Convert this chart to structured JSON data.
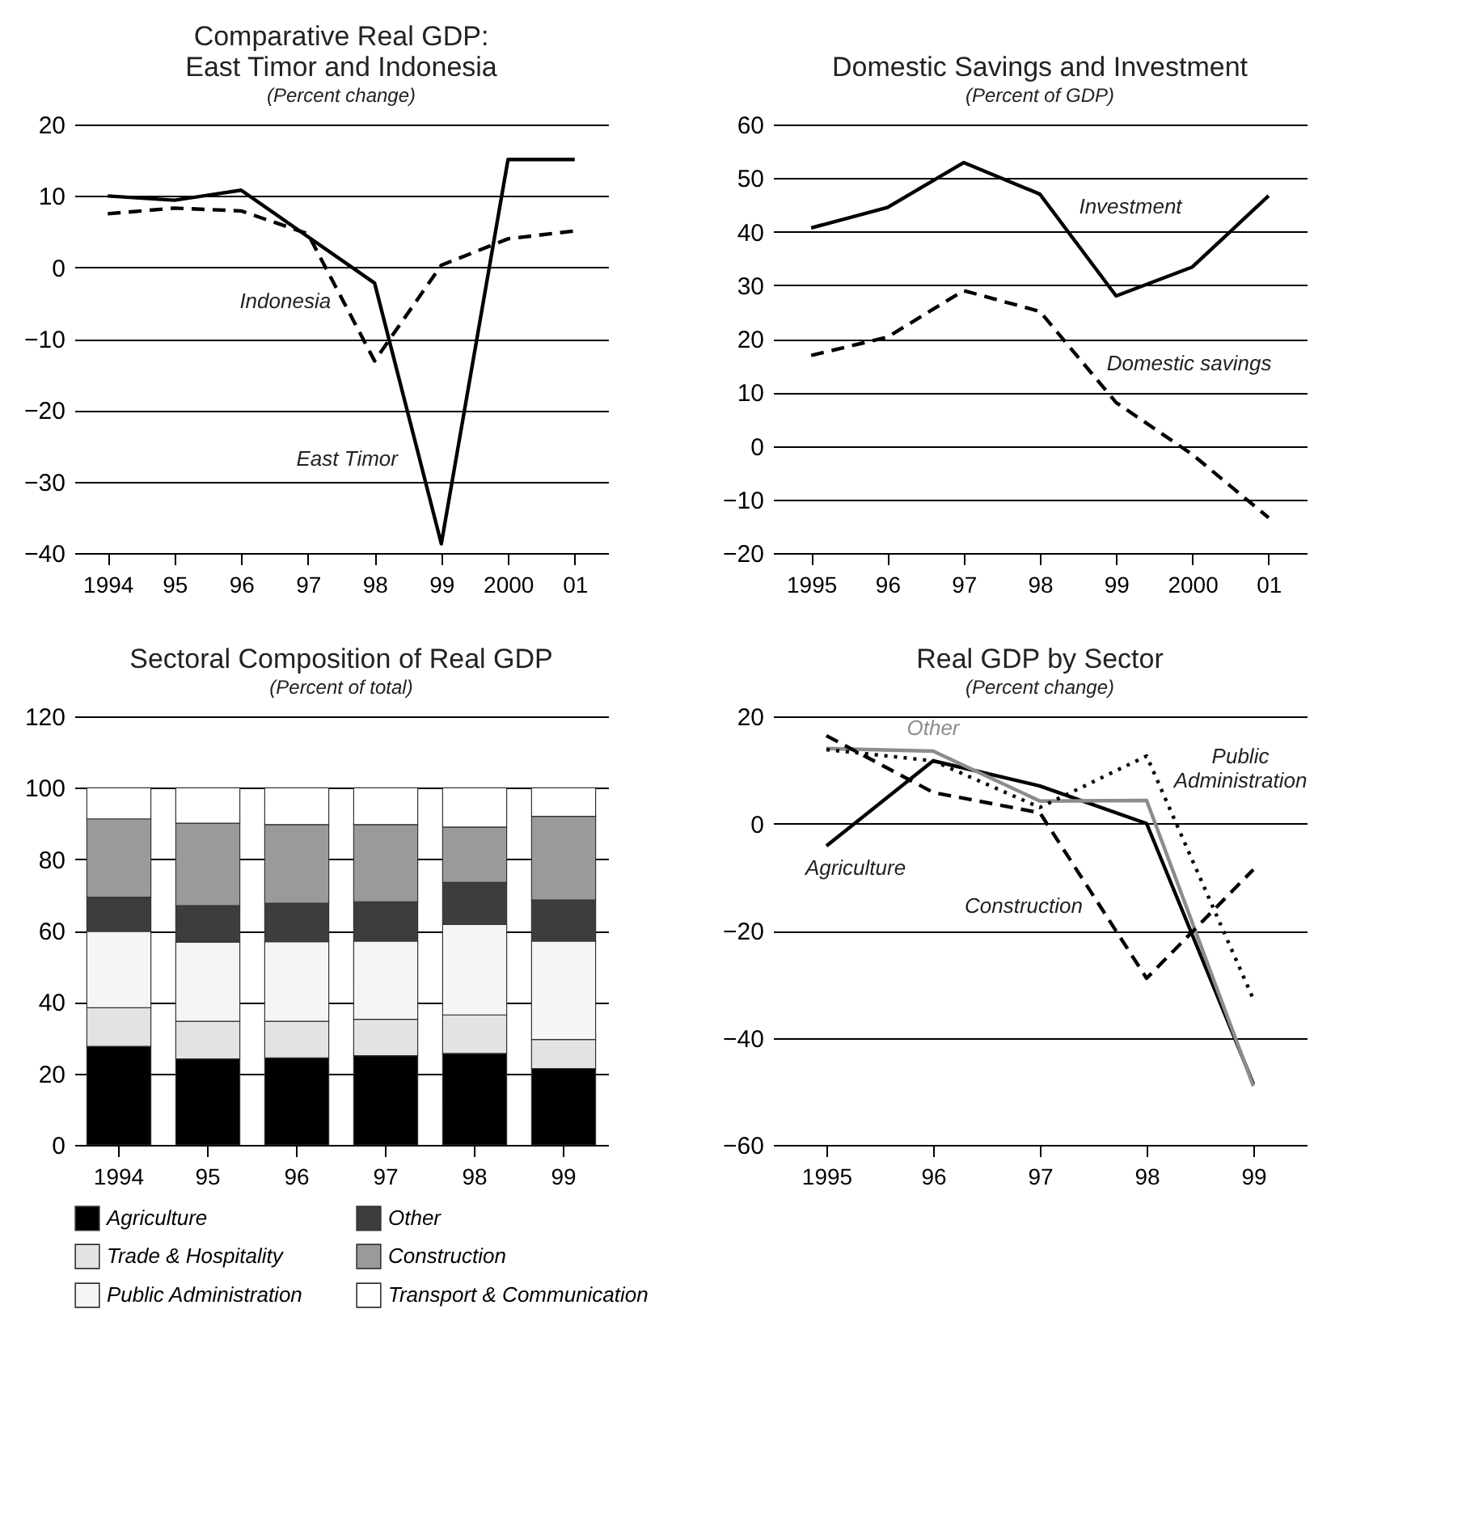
{
  "chart_data": [
    {
      "type": "line",
      "title": "Comparative Real GDP:\nEast Timor and Indonesia",
      "subtitle": "(Percent change)",
      "categories": [
        "1994",
        "95",
        "96",
        "97",
        "98",
        "99",
        "2000",
        "01"
      ],
      "ylim": [
        -40,
        20
      ],
      "yticks": [
        {
          "value": -40,
          "label": "−40"
        },
        {
          "value": -30,
          "label": "−30"
        },
        {
          "value": -20,
          "label": "−20"
        },
        {
          "value": -10,
          "label": "−10"
        },
        0,
        10,
        20
      ],
      "grid": "y",
      "legend": false,
      "series": [
        {
          "name": "East Timor",
          "color": "#000000",
          "line_style": "solid",
          "values": [
            10,
            9.4,
            10.8,
            4.3,
            -2.2,
            -38.7,
            15.1,
            15.1
          ]
        },
        {
          "name": "Indonesia",
          "color": "#000000",
          "line_style": "dashed",
          "values": [
            7.5,
            8.3,
            7.9,
            4.7,
            -13.1,
            0.3,
            4,
            5.1
          ]
        }
      ]
    },
    {
      "type": "line",
      "title": "Domestic Savings and Investment",
      "subtitle": "(Percent of GDP)",
      "categories": [
        "1995",
        "96",
        "97",
        "98",
        "99",
        "2000",
        "01"
      ],
      "ylim": [
        -20,
        60
      ],
      "yticks": [
        {
          "value": -20,
          "label": "−20"
        },
        {
          "value": -10,
          "label": "−10"
        },
        0,
        10,
        20,
        30,
        40,
        50,
        60
      ],
      "grid": "y",
      "legend": false,
      "series": [
        {
          "name": "Investment",
          "color": "#000000",
          "line_style": "solid",
          "values": [
            40.7,
            44.5,
            52.9,
            47,
            28,
            33.4,
            46.7
          ]
        },
        {
          "name": "Domestic savings",
          "color": "#000000",
          "line_style": "dashed",
          "values": [
            16.9,
            20.3,
            29,
            25.1,
            8.1,
            -1.6,
            -13.4
          ]
        }
      ]
    },
    {
      "type": "bar",
      "stacked": true,
      "title": "Sectoral Composition of Real GDP",
      "subtitle": "(Percent of total)",
      "categories": [
        "1994",
        "95",
        "96",
        "97",
        "98",
        "99"
      ],
      "ylim": [
        0,
        120
      ],
      "yticks": [
        0,
        20,
        40,
        60,
        80,
        100,
        120
      ],
      "grid": "y",
      "legend": "bottom",
      "series": [
        {
          "name": "Agriculture",
          "color": "#000000",
          "values": [
            27.6,
            24.1,
            24.4,
            25,
            25.6,
            21.4
          ]
        },
        {
          "name": "Trade & Hospitality",
          "color": "#e3e3e3",
          "values": [
            10.8,
            10.5,
            10.2,
            10.2,
            10.8,
            8.1
          ]
        },
        {
          "name": "Public Administration",
          "color": "#f5f5f5",
          "values": [
            21.4,
            22.2,
            22.3,
            21.9,
            25.3,
            27.6
          ]
        },
        {
          "name": "Other",
          "color": "#3d3d3d",
          "values": [
            9.6,
            10.2,
            10.8,
            11,
            11.8,
            11.5
          ]
        },
        {
          "name": "Construction",
          "color": "#9a9a9a",
          "values": [
            21.9,
            23.1,
            22,
            21.6,
            15.5,
            23.4
          ]
        },
        {
          "name": "Transport & Communication",
          "color": "#ffffff",
          "values": [
            8.7,
            9.9,
            10.3,
            10.3,
            11,
            8
          ]
        }
      ]
    },
    {
      "type": "line",
      "title": "Real GDP by Sector",
      "subtitle": "(Percent change)",
      "categories": [
        "1995",
        "96",
        "97",
        "98",
        "99"
      ],
      "ylim": [
        -60,
        20
      ],
      "yticks": [
        {
          "value": -60,
          "label": "−60"
        },
        {
          "value": -40,
          "label": "−40"
        },
        {
          "value": -20,
          "label": "−20"
        },
        0,
        20
      ],
      "grid": "y",
      "legend": false,
      "series": [
        {
          "name": "Agriculture",
          "color": "#000000",
          "line_style": "solid",
          "values": [
            -4.2,
            11.7,
            7,
            0,
            -48.6
          ]
        },
        {
          "name": "Other",
          "color": "#8c8c8c",
          "line_style": "solid",
          "values": [
            14,
            13.5,
            4.2,
            4.3,
            -49
          ]
        },
        {
          "name": "Construction",
          "color": "#000000",
          "line_style": "dashed",
          "values": [
            16.4,
            5.8,
            2,
            -28.9,
            -8.6
          ]
        },
        {
          "name": "Public Administration",
          "color": "#000000",
          "line_style": "dotted",
          "values": [
            13.8,
            11.7,
            3,
            12.6,
            -32.8
          ]
        }
      ]
    }
  ]
}
